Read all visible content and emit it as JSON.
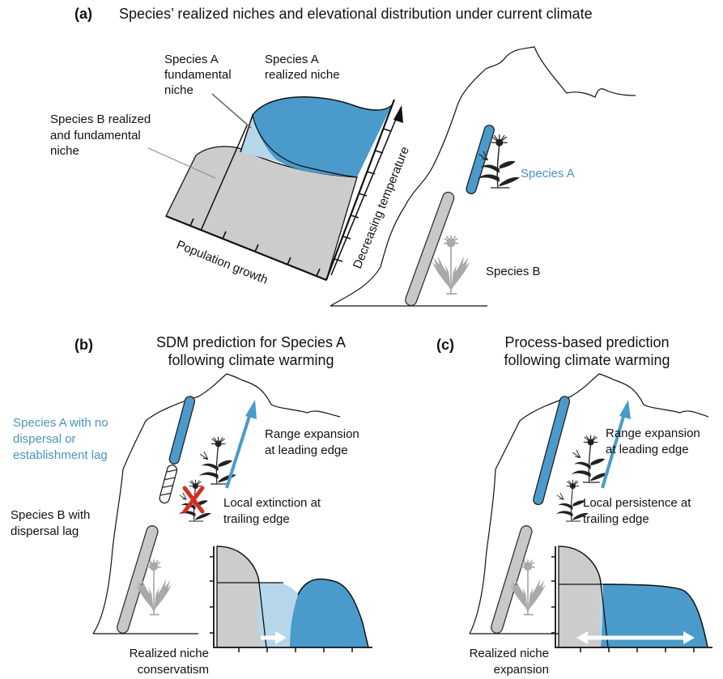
{
  "colors": {
    "blue_dark": "#4a9bcb",
    "blue_light": "#b6d7ea",
    "gray": "#cccccc",
    "gray_plant": "#a9a9a9",
    "blue_text": "#4a93bf",
    "red_x": "#d32f1f",
    "ink": "#111111"
  },
  "panel_a": {
    "letter": "(a)",
    "title": "Species’ realized niches and elevational distribution under current climate",
    "labels": {
      "species_a_fundamental": [
        "Species A",
        "fundamental",
        "niche"
      ],
      "species_a_realized": [
        "Species A",
        "realized niche"
      ],
      "species_b_niche": [
        "Species B realized",
        "and fundamental",
        "niche"
      ],
      "population_growth": "Population growth",
      "decreasing_temperature": "Decreasing temperature",
      "species_a": "Species A",
      "species_b": "Species B"
    },
    "icons": [
      "mountain-icon",
      "flower-icon-dark",
      "dandelion-icon-gray"
    ]
  },
  "panel_b": {
    "letter": "(b)",
    "title": [
      "SDM prediction for Species A",
      "following climate warming"
    ],
    "labels": {
      "species_a_no_lag": [
        "Species A with no",
        "dispersal or",
        "establishment lag"
      ],
      "species_b_lag": [
        "Species B with",
        "dispersal lag"
      ],
      "range_expansion": [
        "Range expansion",
        "at leading edge"
      ],
      "local_extinction": [
        "Local extinction at",
        "trailing edge"
      ],
      "inset_caption": [
        "Realized niche",
        "conservatism"
      ]
    },
    "icons": [
      "mountain-icon",
      "red-x-icon",
      "right-arrow-icon"
    ]
  },
  "panel_c": {
    "letter": "(c)",
    "title": [
      "Process-based prediction",
      "following climate warming"
    ],
    "labels": {
      "range_expansion": [
        "Range expansion",
        "at leading edge"
      ],
      "local_persistence": [
        "Local persistence at",
        "trailing edge"
      ],
      "inset_caption": [
        "Realized niche",
        "expansion"
      ]
    },
    "icons": [
      "mountain-icon",
      "double-arrow-icon"
    ]
  }
}
